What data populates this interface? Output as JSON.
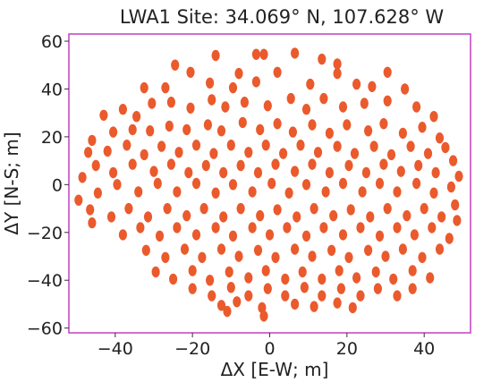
{
  "chart_data": {
    "type": "scatter",
    "title": "LWA1 Site:  34.069° N, 107.628° W",
    "xlabel": "ΔX [E-W; m]",
    "ylabel": "ΔY [N-S; m]",
    "xlim": [
      -52,
      52
    ],
    "ylim": [
      -62,
      63
    ],
    "xticks": [
      -40,
      -20,
      0,
      20,
      40
    ],
    "yticks": [
      -60,
      -40,
      -20,
      0,
      20,
      40,
      60
    ],
    "xtick_labels": [
      "−40",
      "−20",
      "0",
      "20",
      "40"
    ],
    "ytick_labels": [
      "−60",
      "−40",
      "−20",
      "0",
      "20",
      "40",
      "60"
    ],
    "grid": false,
    "frame_color": "#c040c0",
    "marker_color": "#ea5a2c",
    "series": [
      {
        "points": [
          [
            -24.5,
            50.0
          ],
          [
            -14.0,
            54.0
          ],
          [
            -3.5,
            54.5
          ],
          [
            -1.5,
            54.5
          ],
          [
            6.5,
            55.0
          ],
          [
            13.5,
            52.5
          ],
          [
            17.5,
            50.5
          ],
          [
            30.5,
            47.0
          ],
          [
            -32.5,
            40.5
          ],
          [
            -27.0,
            40.5
          ],
          [
            -20.5,
            47.0
          ],
          [
            -15.5,
            42.5
          ],
          [
            -9.5,
            40.5
          ],
          [
            -3.5,
            43.0
          ],
          [
            2.0,
            47.0
          ],
          [
            -8.0,
            46.5
          ],
          [
            10.5,
            42.0
          ],
          [
            17.5,
            46.5
          ],
          [
            22.5,
            42.0
          ],
          [
            26.5,
            41.0
          ],
          [
            35.0,
            40.0
          ],
          [
            -43.0,
            29.0
          ],
          [
            -38.0,
            31.5
          ],
          [
            -34.5,
            28.5
          ],
          [
            -30.5,
            34.0
          ],
          [
            -25.5,
            34.5
          ],
          [
            -20.5,
            32.0
          ],
          [
            -15.0,
            35.5
          ],
          [
            -11.5,
            32.5
          ],
          [
            -6.5,
            34.5
          ],
          [
            -0.5,
            33.0
          ],
          [
            5.5,
            36.0
          ],
          [
            9.5,
            31.5
          ],
          [
            14.0,
            36.0
          ],
          [
            19.0,
            32.5
          ],
          [
            24.5,
            34.0
          ],
          [
            30.5,
            35.0
          ],
          [
            38.0,
            32.5
          ],
          [
            42.5,
            28.5
          ],
          [
            -46.0,
            18.5
          ],
          [
            -40.5,
            22.0
          ],
          [
            -35.5,
            23.0
          ],
          [
            -31.0,
            22.5
          ],
          [
            -26.0,
            24.5
          ],
          [
            -21.5,
            23.0
          ],
          [
            -16.0,
            25.0
          ],
          [
            -12.5,
            22.5
          ],
          [
            -7.0,
            26.0
          ],
          [
            -2.5,
            23.0
          ],
          [
            2.0,
            25.5
          ],
          [
            6.0,
            22.0
          ],
          [
            11.0,
            25.0
          ],
          [
            15.5,
            21.5
          ],
          [
            20.0,
            25.0
          ],
          [
            25.5,
            22.5
          ],
          [
            29.5,
            25.5
          ],
          [
            34.5,
            21.5
          ],
          [
            39.5,
            24.0
          ],
          [
            44.0,
            19.5
          ],
          [
            -47.0,
            13.5
          ],
          [
            -42.0,
            14.0
          ],
          [
            -37.0,
            16.5
          ],
          [
            -32.5,
            12.5
          ],
          [
            -28.0,
            16.0
          ],
          [
            -23.5,
            13.5
          ],
          [
            -19.0,
            16.5
          ],
          [
            -14.5,
            13.0
          ],
          [
            -10.0,
            16.5
          ],
          [
            -5.5,
            13.5
          ],
          [
            -1.0,
            16.5
          ],
          [
            3.5,
            13.0
          ],
          [
            8.0,
            16.5
          ],
          [
            12.5,
            13.5
          ],
          [
            17.5,
            16.0
          ],
          [
            22.0,
            13.0
          ],
          [
            27.0,
            16.0
          ],
          [
            31.5,
            12.5
          ],
          [
            36.5,
            16.0
          ],
          [
            41.0,
            13.0
          ],
          [
            45.5,
            15.5
          ],
          [
            -48.5,
            3.0
          ],
          [
            -45.0,
            8.0
          ],
          [
            -40.5,
            5.0
          ],
          [
            -35.5,
            8.5
          ],
          [
            -30.0,
            5.5
          ],
          [
            -25.5,
            8.5
          ],
          [
            -21.0,
            5.0
          ],
          [
            -16.5,
            8.0
          ],
          [
            -12.0,
            5.0
          ],
          [
            -7.5,
            8.0
          ],
          [
            -3.0,
            5.0
          ],
          [
            1.5,
            8.5
          ],
          [
            6.5,
            5.5
          ],
          [
            11.0,
            8.5
          ],
          [
            15.5,
            5.0
          ],
          [
            20.5,
            8.0
          ],
          [
            25.0,
            5.0
          ],
          [
            29.5,
            8.5
          ],
          [
            34.0,
            5.5
          ],
          [
            38.5,
            8.0
          ],
          [
            43.0,
            5.0
          ],
          [
            47.5,
            10.0
          ],
          [
            -49.5,
            -6.5
          ],
          [
            -44.5,
            -3.5
          ],
          [
            -39.5,
            0.0
          ],
          [
            -34.0,
            -3.0
          ],
          [
            -29.0,
            0.5
          ],
          [
            -24.0,
            -3.0
          ],
          [
            -19.0,
            0.5
          ],
          [
            -14.0,
            -3.5
          ],
          [
            -9.5,
            0.0
          ],
          [
            -4.5,
            -3.0
          ],
          [
            0.5,
            0.5
          ],
          [
            5.0,
            -3.5
          ],
          [
            9.5,
            0.0
          ],
          [
            14.5,
            -3.0
          ],
          [
            19.0,
            0.5
          ],
          [
            24.0,
            -3.0
          ],
          [
            28.5,
            0.5
          ],
          [
            33.0,
            -3.0
          ],
          [
            38.0,
            0.5
          ],
          [
            42.5,
            -3.5
          ],
          [
            47.0,
            -1.0
          ],
          [
            49.0,
            3.5
          ],
          [
            -46.5,
            -10.5
          ],
          [
            -41.0,
            -13.5
          ],
          [
            -36.5,
            -10.0
          ],
          [
            -31.5,
            -13.5
          ],
          [
            -26.5,
            -10.0
          ],
          [
            -21.5,
            -13.0
          ],
          [
            -17.0,
            -10.0
          ],
          [
            -12.0,
            -13.5
          ],
          [
            -7.5,
            -10.0
          ],
          [
            -2.5,
            -13.0
          ],
          [
            2.0,
            -10.5
          ],
          [
            7.0,
            -13.5
          ],
          [
            11.5,
            -10.0
          ],
          [
            16.5,
            -13.0
          ],
          [
            21.0,
            -10.5
          ],
          [
            26.0,
            -13.5
          ],
          [
            30.5,
            -10.0
          ],
          [
            35.5,
            -13.0
          ],
          [
            40.0,
            -10.0
          ],
          [
            44.5,
            -13.5
          ],
          [
            48.0,
            -8.5
          ],
          [
            -46.0,
            -16.0
          ],
          [
            -38.0,
            -21.0
          ],
          [
            -33.5,
            -18.0
          ],
          [
            -28.5,
            -21.5
          ],
          [
            -24.0,
            -18.0
          ],
          [
            -19.0,
            -21.0
          ],
          [
            -14.0,
            -18.0
          ],
          [
            -9.5,
            -21.5
          ],
          [
            -4.5,
            -18.0
          ],
          [
            0.0,
            -21.0
          ],
          [
            4.5,
            -18.0
          ],
          [
            9.5,
            -21.5
          ],
          [
            14.0,
            -18.0
          ],
          [
            19.0,
            -21.0
          ],
          [
            23.5,
            -18.0
          ],
          [
            28.5,
            -21.5
          ],
          [
            33.0,
            -18.0
          ],
          [
            37.5,
            -21.0
          ],
          [
            42.0,
            -18.0
          ],
          [
            46.5,
            -22.5
          ],
          [
            48.5,
            -15.0
          ],
          [
            -32.0,
            -27.5
          ],
          [
            -27.0,
            -30.5
          ],
          [
            -22.0,
            -27.0
          ],
          [
            -17.5,
            -30.5
          ],
          [
            -12.5,
            -27.0
          ],
          [
            -8.0,
            -30.0
          ],
          [
            -3.0,
            -27.5
          ],
          [
            1.5,
            -30.5
          ],
          [
            6.5,
            -27.0
          ],
          [
            11.0,
            -30.0
          ],
          [
            16.0,
            -27.5
          ],
          [
            20.5,
            -30.5
          ],
          [
            25.5,
            -27.5
          ],
          [
            30.0,
            -30.0
          ],
          [
            34.5,
            -27.0
          ],
          [
            39.5,
            -30.5
          ],
          [
            44.0,
            -27.0
          ],
          [
            -29.5,
            -36.5
          ],
          [
            -25.0,
            -39.5
          ],
          [
            -20.0,
            -36.0
          ],
          [
            -15.5,
            -40.0
          ],
          [
            -10.5,
            -36.5
          ],
          [
            -5.5,
            -39.0
          ],
          [
            -1.0,
            -36.0
          ],
          [
            4.0,
            -39.5
          ],
          [
            8.5,
            -36.5
          ],
          [
            13.5,
            -39.5
          ],
          [
            18.0,
            -36.0
          ],
          [
            22.5,
            -39.0
          ],
          [
            27.5,
            -36.5
          ],
          [
            32.0,
            -39.5
          ],
          [
            37.0,
            -36.0
          ],
          [
            41.5,
            -39.0
          ],
          [
            -20.0,
            -43.5
          ],
          [
            -15.0,
            -46.5
          ],
          [
            -10.0,
            -43.0
          ],
          [
            -5.5,
            -46.5
          ],
          [
            -0.5,
            -43.5
          ],
          [
            4.0,
            -46.5
          ],
          [
            9.0,
            -43.0
          ],
          [
            13.5,
            -46.5
          ],
          [
            18.5,
            -43.5
          ],
          [
            23.5,
            -46.5
          ],
          [
            28.0,
            -43.5
          ],
          [
            33.0,
            -46.5
          ],
          [
            37.0,
            -43.5
          ],
          [
            -12.5,
            -50.5
          ],
          [
            -8.5,
            -49.0
          ],
          [
            -2.0,
            -51.5
          ],
          [
            6.5,
            -50.0
          ],
          [
            11.5,
            -51.0
          ],
          [
            17.5,
            -49.5
          ],
          [
            21.5,
            -51.5
          ],
          [
            -1.5,
            -55.0
          ],
          [
            -11.0,
            -53.0
          ]
        ]
      }
    ]
  }
}
